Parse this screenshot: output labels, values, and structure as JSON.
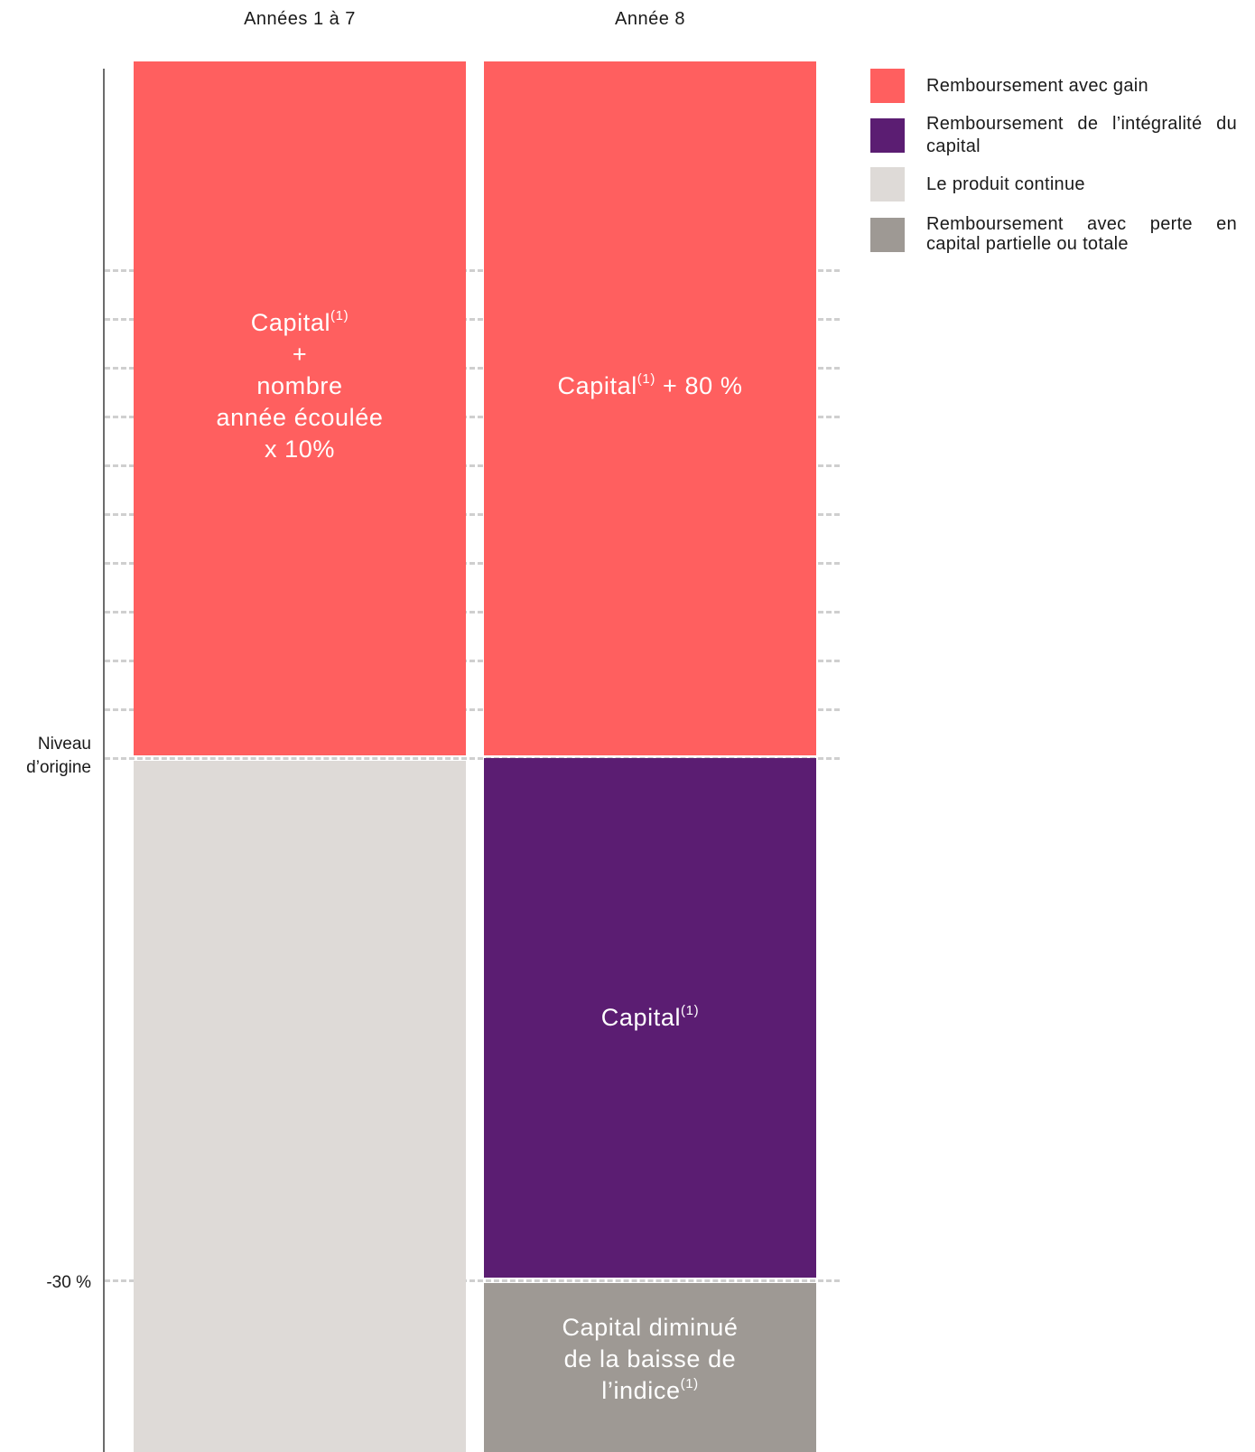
{
  "columns": {
    "first": "Années 1 à 7",
    "second": "Année 8"
  },
  "axis": {
    "origin_label": "Niveau\nd’origine",
    "barrier_label": "-30 %"
  },
  "blocks": {
    "col1_gain": {
      "line1": "Capital",
      "sup": "(1)",
      "line2": "+",
      "line3": "nombre",
      "line4": "année écoulée",
      "line5": "x 10%"
    },
    "col2_gain": {
      "text": "Capital",
      "sup": "(1)",
      "suffix": " + 80 %"
    },
    "col2_capital": {
      "text": "Capital",
      "sup": "(1)"
    },
    "col2_loss": {
      "line1": "Capital diminué",
      "line2": "de la baisse de",
      "line3": "l’indice",
      "sup": "(1)"
    }
  },
  "legend": [
    {
      "label": "Remboursement avec gain",
      "color": "#ff5f5f"
    },
    {
      "label": "Remboursement de l’intégralité du capital",
      "color": "#5b1d72"
    },
    {
      "label": "Le produit continue",
      "color": "#dedad7"
    },
    {
      "label": "Remboursement avec perte en capital partielle ou totale",
      "color": "#9e9994"
    }
  ]
}
